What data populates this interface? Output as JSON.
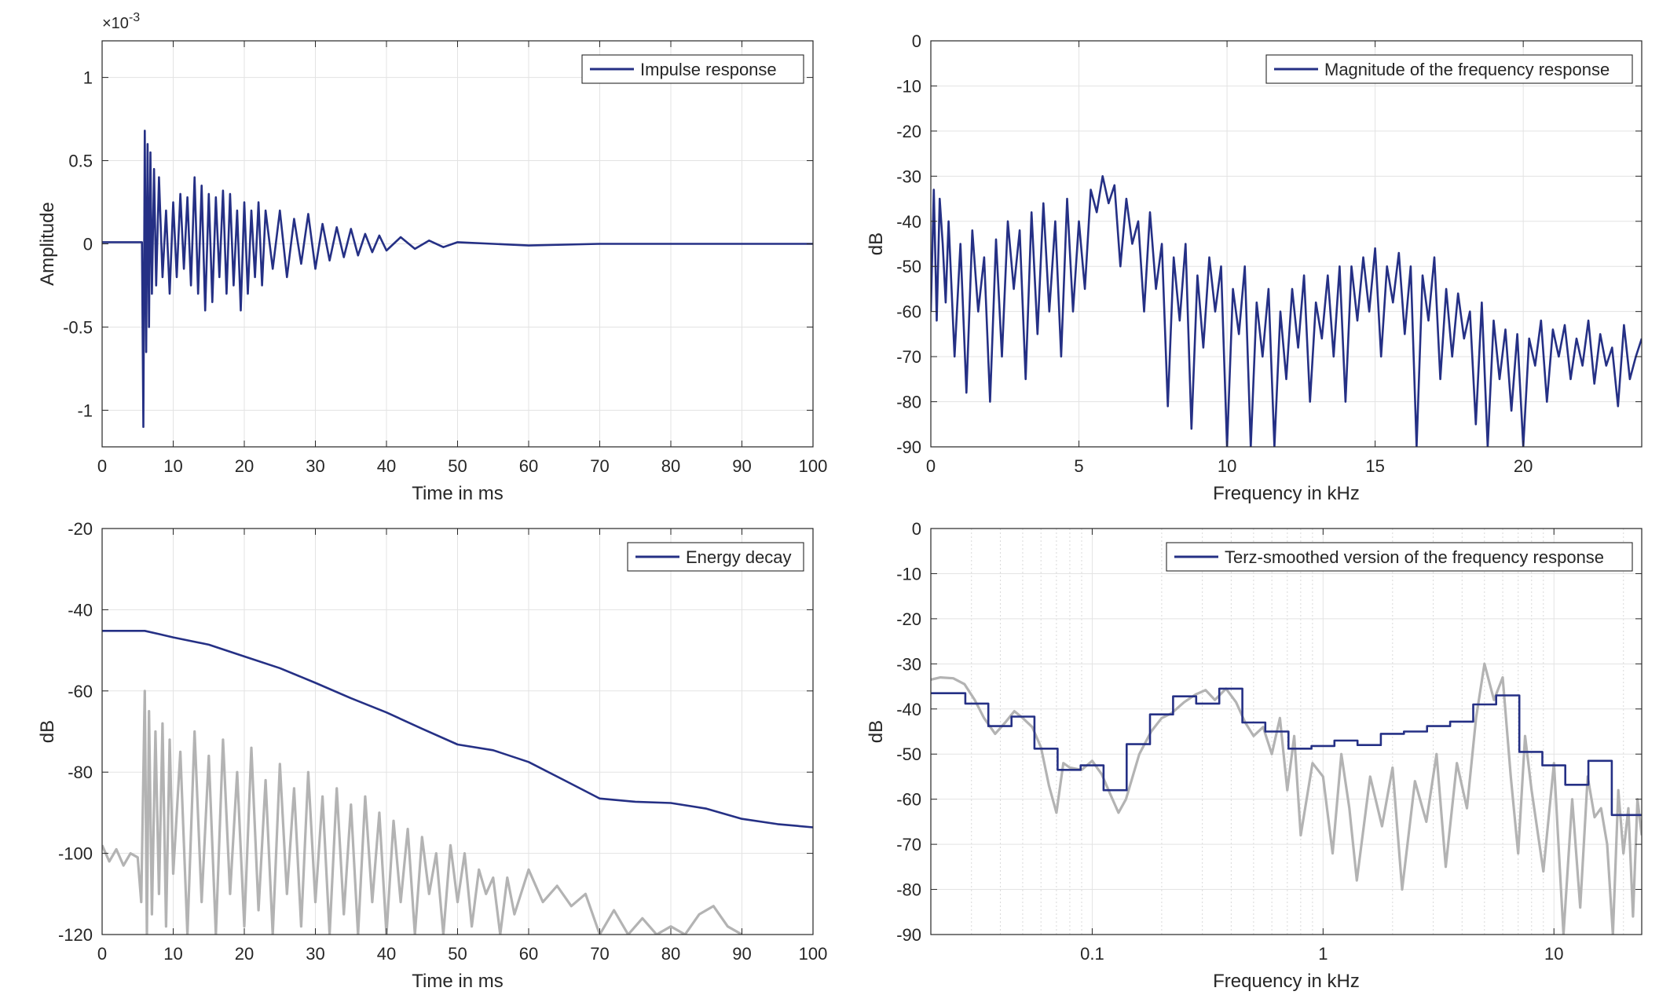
{
  "colors": {
    "primary": "#253085",
    "secondary": "#b3b3b3",
    "grid": "#e3e3e3",
    "axis": "#262626"
  },
  "chart_data": [
    {
      "id": "impulse",
      "type": "line",
      "title": "",
      "xlabel": "Time in ms",
      "ylabel": "Amplitude",
      "exponent": "×10",
      "exponent_power": "-3",
      "xscale": "linear",
      "xlim": [
        0,
        100
      ],
      "ylim": [
        -1.22,
        1.22
      ],
      "xticks": [
        0,
        10,
        20,
        30,
        40,
        50,
        60,
        70,
        80,
        90,
        100
      ],
      "xtick_labels": [
        "0",
        "10",
        "20",
        "30",
        "40",
        "50",
        "60",
        "70",
        "80",
        "90",
        "100"
      ],
      "yticks": [
        -1,
        -0.5,
        0,
        0.5,
        1
      ],
      "ytick_labels": [
        "-1",
        "-0.5",
        "0",
        "0.5",
        "1"
      ],
      "grid": true,
      "legend_position": "top-right",
      "series": [
        {
          "name": "Impulse response",
          "color": "#253085",
          "x": [
            0,
            2,
            4,
            5.6,
            5.8,
            6.0,
            6.2,
            6.4,
            6.6,
            6.8,
            7.0,
            7.3,
            7.6,
            8.0,
            8.5,
            9,
            9.5,
            10,
            10.5,
            11,
            11.5,
            12,
            12.5,
            13,
            13.5,
            14,
            14.5,
            15,
            15.5,
            16,
            16.5,
            17,
            17.5,
            18,
            18.5,
            19,
            19.5,
            20,
            20.5,
            21,
            21.5,
            22,
            22.5,
            23,
            24,
            25,
            26,
            27,
            28,
            29,
            30,
            31,
            32,
            33,
            34,
            35,
            36,
            37,
            38,
            39,
            40,
            42,
            44,
            46,
            48,
            50,
            55,
            60,
            70,
            80,
            90,
            100
          ],
          "y": [
            0.01,
            0.01,
            0.01,
            0.01,
            -1.1,
            0.68,
            -0.65,
            0.6,
            -0.5,
            0.55,
            -0.3,
            0.45,
            -0.25,
            0.4,
            -0.2,
            0.2,
            -0.3,
            0.25,
            -0.2,
            0.3,
            -0.15,
            0.28,
            -0.25,
            0.4,
            -0.3,
            0.35,
            -0.4,
            0.3,
            -0.35,
            0.28,
            -0.2,
            0.32,
            -0.3,
            0.3,
            -0.25,
            0.2,
            -0.4,
            0.25,
            -0.3,
            0.2,
            -0.2,
            0.25,
            -0.25,
            0.2,
            -0.15,
            0.2,
            -0.2,
            0.15,
            -0.12,
            0.18,
            -0.15,
            0.12,
            -0.1,
            0.1,
            -0.08,
            0.09,
            -0.07,
            0.06,
            -0.05,
            0.05,
            -0.04,
            0.04,
            -0.03,
            0.02,
            -0.02,
            0.01,
            0.0,
            -0.01,
            0.0,
            0.0,
            0.0,
            0.0
          ]
        }
      ]
    },
    {
      "id": "magnitude",
      "type": "line",
      "title": "",
      "xlabel": "Frequency in kHz",
      "ylabel": "dB",
      "xscale": "linear",
      "xlim": [
        0,
        24
      ],
      "ylim": [
        -90,
        0
      ],
      "xticks": [
        0,
        5,
        10,
        15,
        20
      ],
      "xtick_labels": [
        "0",
        "5",
        "10",
        "15",
        "20"
      ],
      "yticks": [
        0,
        -10,
        -20,
        -30,
        -40,
        -50,
        -60,
        -70,
        -80,
        -90
      ],
      "ytick_labels": [
        "0",
        "-10",
        "-20",
        "-30",
        "-40",
        "-50",
        "-60",
        "-70",
        "-80",
        "-90"
      ],
      "grid": true,
      "legend_position": "top-right",
      "series": [
        {
          "name": "Magnitude of the frequency response",
          "color": "#253085",
          "x": [
            0,
            0.1,
            0.2,
            0.3,
            0.4,
            0.5,
            0.6,
            0.8,
            1.0,
            1.2,
            1.4,
            1.6,
            1.8,
            2.0,
            2.2,
            2.4,
            2.6,
            2.8,
            3.0,
            3.2,
            3.4,
            3.6,
            3.8,
            4.0,
            4.2,
            4.4,
            4.6,
            4.8,
            5.0,
            5.2,
            5.4,
            5.6,
            5.8,
            6.0,
            6.2,
            6.4,
            6.6,
            6.8,
            7.0,
            7.2,
            7.4,
            7.6,
            7.8,
            8.0,
            8.2,
            8.4,
            8.6,
            8.8,
            9.0,
            9.2,
            9.4,
            9.6,
            9.8,
            10.0,
            10.2,
            10.4,
            10.6,
            10.8,
            11.0,
            11.2,
            11.4,
            11.6,
            11.8,
            12.0,
            12.2,
            12.4,
            12.6,
            12.8,
            13.0,
            13.2,
            13.4,
            13.6,
            13.8,
            14.0,
            14.2,
            14.4,
            14.6,
            14.8,
            15.0,
            15.2,
            15.4,
            15.6,
            15.8,
            16.0,
            16.2,
            16.4,
            16.6,
            16.8,
            17.0,
            17.2,
            17.4,
            17.6,
            17.8,
            18.0,
            18.2,
            18.4,
            18.6,
            18.8,
            19.0,
            19.2,
            19.4,
            19.6,
            19.8,
            20.0,
            20.2,
            20.4,
            20.6,
            20.8,
            21.0,
            21.2,
            21.4,
            21.6,
            21.8,
            22.0,
            22.2,
            22.4,
            22.6,
            22.8,
            23.0,
            23.2,
            23.4,
            23.6,
            23.8,
            24.0
          ],
          "y": [
            -60,
            -33,
            -62,
            -35,
            -45,
            -58,
            -40,
            -70,
            -45,
            -78,
            -42,
            -60,
            -48,
            -80,
            -44,
            -70,
            -40,
            -55,
            -42,
            -75,
            -38,
            -65,
            -36,
            -60,
            -40,
            -70,
            -35,
            -60,
            -40,
            -55,
            -33,
            -38,
            -30,
            -36,
            -32,
            -50,
            -35,
            -45,
            -40,
            -60,
            -38,
            -55,
            -45,
            -81,
            -48,
            -62,
            -45,
            -86,
            -52,
            -68,
            -48,
            -60,
            -50,
            -90,
            -55,
            -65,
            -50,
            -90,
            -58,
            -70,
            -55,
            -90,
            -60,
            -75,
            -55,
            -68,
            -52,
            -80,
            -58,
            -66,
            -52,
            -70,
            -50,
            -80,
            -50,
            -62,
            -48,
            -60,
            -46,
            -70,
            -50,
            -58,
            -47,
            -65,
            -50,
            -90,
            -52,
            -62,
            -48,
            -75,
            -55,
            -70,
            -56,
            -66,
            -60,
            -85,
            -58,
            -90,
            -62,
            -75,
            -64,
            -82,
            -65,
            -90,
            -66,
            -72,
            -62,
            -80,
            -64,
            -70,
            -63,
            -75,
            -66,
            -72,
            -62,
            -76,
            -65,
            -72,
            -68,
            -81,
            -63,
            -75,
            -70,
            -66
          ]
        }
      ]
    },
    {
      "id": "energy",
      "type": "line",
      "title": "",
      "xlabel": "Time in ms",
      "ylabel": "dB",
      "xscale": "linear",
      "xlim": [
        0,
        100
      ],
      "ylim": [
        -120,
        -20
      ],
      "xticks": [
        0,
        10,
        20,
        30,
        40,
        50,
        60,
        70,
        80,
        90,
        100
      ],
      "xtick_labels": [
        "0",
        "10",
        "20",
        "30",
        "40",
        "50",
        "60",
        "70",
        "80",
        "90",
        "100"
      ],
      "yticks": [
        -20,
        -40,
        -60,
        -80,
        -100,
        -120
      ],
      "ytick_labels": [
        "-20",
        "-40",
        "-60",
        "-80",
        "-100",
        "-120"
      ],
      "grid": true,
      "legend_position": "top-right",
      "series": [
        {
          "name": "Energy decay",
          "color": "#253085",
          "x": [
            0,
            6,
            8,
            10,
            15,
            20,
            25,
            30,
            35,
            40,
            45,
            50,
            55,
            60,
            65,
            70,
            75,
            80,
            85,
            90,
            95,
            100
          ],
          "y": [
            -45.2,
            -45.2,
            -46,
            -46.8,
            -48.6,
            -51.5,
            -54.4,
            -58,
            -61.8,
            -65.3,
            -69.3,
            -73.2,
            -74.6,
            -77.5,
            -82,
            -86.5,
            -87.3,
            -87.6,
            -89,
            -91.5,
            -92.8,
            -93.6
          ]
        },
        {
          "name": "",
          "color": "#b3b3b3",
          "x": [
            0,
            1,
            2,
            3,
            4,
            5,
            5.5,
            6,
            6.3,
            6.6,
            7,
            7.5,
            8,
            8.5,
            9,
            9.5,
            10,
            11,
            12,
            13,
            14,
            15,
            16,
            17,
            18,
            19,
            20,
            21,
            22,
            23,
            24,
            25,
            26,
            27,
            28,
            29,
            30,
            31,
            32,
            33,
            34,
            35,
            36,
            37,
            38,
            39,
            40,
            41,
            42,
            43,
            44,
            45,
            46,
            47,
            48,
            49,
            50,
            51,
            52,
            53,
            54,
            55,
            56,
            57,
            58,
            60,
            62,
            64,
            66,
            68,
            70,
            72,
            74,
            76,
            78,
            80,
            82,
            84,
            86,
            88,
            90
          ],
          "y": [
            -98,
            -102,
            -99,
            -103,
            -100,
            -101,
            -112,
            -60,
            -120,
            -65,
            -115,
            -70,
            -110,
            -68,
            -118,
            -72,
            -105,
            -75,
            -120,
            -70,
            -112,
            -76,
            -120,
            -72,
            -110,
            -80,
            -118,
            -74,
            -114,
            -82,
            -120,
            -78,
            -110,
            -84,
            -118,
            -80,
            -112,
            -86,
            -120,
            -84,
            -115,
            -88,
            -120,
            -86,
            -112,
            -90,
            -120,
            -92,
            -112,
            -94,
            -120,
            -96,
            -110,
            -100,
            -120,
            -98,
            -112,
            -100,
            -118,
            -104,
            -110,
            -106,
            -120,
            -106,
            -115,
            -104,
            -112,
            -108,
            -113,
            -110,
            -120,
            -114,
            -120,
            -116,
            -120,
            -118,
            -120,
            -115,
            -113,
            -118,
            -120
          ]
        }
      ]
    },
    {
      "id": "terz",
      "type": "line",
      "title": "",
      "xlabel": "Frequency in kHz",
      "ylabel": "dB",
      "xscale": "log",
      "xlim": [
        0.02,
        24
      ],
      "ylim": [
        -90,
        0
      ],
      "xticks": [
        0.1,
        1,
        10
      ],
      "xtick_labels": [
        "0.1",
        "1",
        "10"
      ],
      "yticks": [
        0,
        -10,
        -20,
        -30,
        -40,
        -50,
        -60,
        -70,
        -80,
        -90
      ],
      "ytick_labels": [
        "0",
        "-10",
        "-20",
        "-30",
        "-40",
        "-50",
        "-60",
        "-70",
        "-80",
        "-90"
      ],
      "grid": true,
      "legend_position": "top-right",
      "series": [
        {
          "name": "Terz-smoothed version of the frequency response",
          "color": "#253085",
          "x": [
            0.02,
            0.0282,
            0.0282,
            0.0355,
            0.0355,
            0.0447,
            0.0447,
            0.0562,
            0.0562,
            0.0708,
            0.0708,
            0.0891,
            0.0891,
            0.112,
            0.112,
            0.141,
            0.141,
            0.178,
            0.178,
            0.224,
            0.224,
            0.282,
            0.282,
            0.355,
            0.355,
            0.447,
            0.447,
            0.562,
            0.562,
            0.708,
            0.708,
            0.891,
            0.891,
            1.12,
            1.12,
            1.41,
            1.41,
            1.78,
            1.78,
            2.24,
            2.24,
            2.82,
            2.82,
            3.55,
            3.55,
            4.47,
            4.47,
            5.62,
            5.62,
            7.08,
            7.08,
            8.91,
            8.91,
            11.2,
            11.2,
            14.1,
            14.1,
            17.8,
            17.8,
            24
          ],
          "y": [
            -36.5,
            -36.5,
            -38.8,
            -38.8,
            -43.8,
            -43.8,
            -41.7,
            -41.7,
            -48.8,
            -48.8,
            -53.5,
            -53.5,
            -52.5,
            -52.5,
            -58,
            -58,
            -47.8,
            -47.8,
            -41.2,
            -41.2,
            -37.2,
            -37.2,
            -38.8,
            -38.8,
            -35.5,
            -35.5,
            -43,
            -43,
            -45,
            -45,
            -48.8,
            -48.8,
            -48.2,
            -48.2,
            -47,
            -47,
            -48,
            -48,
            -45.5,
            -45.5,
            -45,
            -45,
            -43.8,
            -43.8,
            -42.8,
            -42.8,
            -39,
            -39,
            -37,
            -37,
            -49.5,
            -49.5,
            -52.5,
            -52.5,
            -56.8,
            -56.8,
            -51.5,
            -51.5,
            -63.5,
            -63.5
          ]
        },
        {
          "name": "",
          "color": "#b3b3b3",
          "x": [
            0.02,
            0.022,
            0.025,
            0.028,
            0.031,
            0.034,
            0.038,
            0.042,
            0.046,
            0.05,
            0.055,
            0.06,
            0.065,
            0.07,
            0.075,
            0.08,
            0.09,
            0.1,
            0.11,
            0.12,
            0.13,
            0.14,
            0.16,
            0.18,
            0.2,
            0.22,
            0.25,
            0.28,
            0.31,
            0.34,
            0.38,
            0.42,
            0.46,
            0.5,
            0.55,
            0.6,
            0.65,
            0.7,
            0.75,
            0.8,
            0.9,
            1.0,
            1.1,
            1.2,
            1.3,
            1.4,
            1.6,
            1.8,
            2.0,
            2.2,
            2.5,
            2.8,
            3.1,
            3.4,
            3.8,
            4.2,
            4.6,
            5.0,
            5.5,
            6.0,
            6.5,
            7.0,
            7.5,
            8.0,
            9.0,
            10,
            11,
            12,
            13,
            14,
            15,
            16,
            17,
            18,
            19,
            20,
            21,
            22,
            23,
            24
          ],
          "y": [
            -33.5,
            -33,
            -33.2,
            -34.5,
            -38,
            -42,
            -45.5,
            -43,
            -40.5,
            -42,
            -44,
            -48.5,
            -57,
            -63,
            -52,
            -53,
            -53.5,
            -51.5,
            -54.5,
            -59,
            -63,
            -60,
            -50,
            -45,
            -42,
            -41,
            -38.5,
            -36.8,
            -35.8,
            -38,
            -35.5,
            -38.5,
            -43,
            -46,
            -44,
            -50,
            -42,
            -58,
            -46,
            -68,
            -52,
            -55,
            -72,
            -50,
            -62,
            -78,
            -55,
            -66,
            -53,
            -80,
            -56,
            -65,
            -50,
            -75,
            -52,
            -62,
            -42,
            -30,
            -38,
            -33,
            -55,
            -72,
            -46,
            -58,
            -76,
            -52,
            -90,
            -60,
            -84,
            -55,
            -64,
            -62,
            -70,
            -90,
            -58,
            -72,
            -62,
            -86,
            -60,
            -68
          ]
        }
      ]
    }
  ]
}
